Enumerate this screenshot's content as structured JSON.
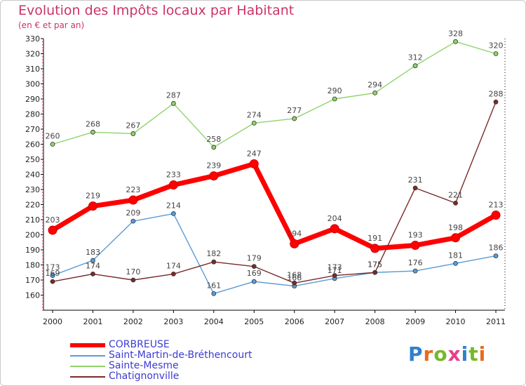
{
  "title": "Evolution des Impôts locaux par Habitant",
  "subtitle": "(en € et par an)",
  "logo": {
    "text": "Proxiti",
    "colors": [
      "#2f7fd0",
      "#e86b1c",
      "#76b82a",
      "#e83e8c",
      "#2f7fd0",
      "#76b82a",
      "#e86b1c"
    ]
  },
  "chart_data": {
    "type": "line",
    "title": "Evolution des Impôts locaux par Habitant",
    "subtitle": "(en € et par an)",
    "x": [
      "2000",
      "2001",
      "2002",
      "2003",
      "2004",
      "2005",
      "2006",
      "2007",
      "2008",
      "2009",
      "2010",
      "2011"
    ],
    "ylim": [
      150,
      330
    ],
    "yticks": [
      160,
      170,
      180,
      190,
      200,
      210,
      220,
      230,
      240,
      250,
      260,
      270,
      280,
      290,
      300,
      310,
      320,
      330
    ],
    "grid": false,
    "legend_position": "bottom-left",
    "series": [
      {
        "name": "CORBREUSE",
        "color": "#ff0000",
        "values": [
          203,
          219,
          223,
          233,
          239,
          247,
          194,
          204,
          191,
          193,
          198,
          213
        ]
      },
      {
        "name": "Saint-Martin-de-Bréthencourt",
        "color": "#5b9bd5",
        "values": [
          173,
          183,
          209,
          214,
          161,
          169,
          166,
          171,
          175,
          176,
          181,
          186
        ]
      },
      {
        "name": "Sainte-Mesme",
        "color": "#8fd36b",
        "values": [
          260,
          268,
          267,
          287,
          258,
          274,
          277,
          290,
          294,
          312,
          328,
          320
        ]
      },
      {
        "name": "Chatignonville",
        "color": "#7a2a2a",
        "values": [
          169,
          174,
          170,
          174,
          182,
          179,
          168,
          173,
          175,
          231,
          221,
          288
        ]
      }
    ]
  }
}
